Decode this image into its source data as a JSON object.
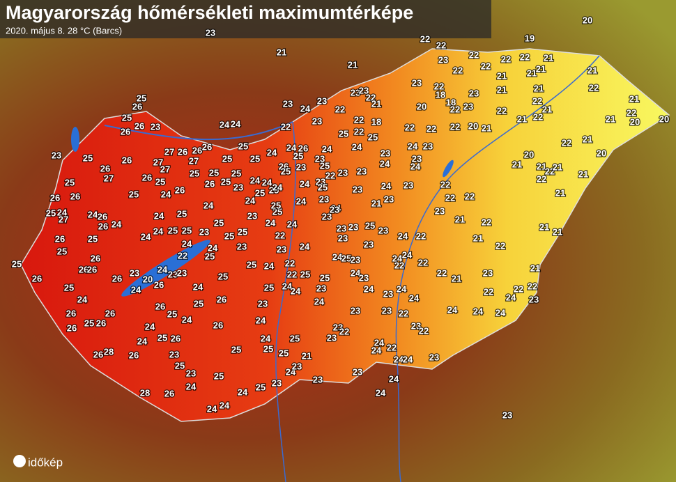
{
  "header": {
    "title": "Magyarország hőmérsékleti maximumtérképe",
    "subtitle": "2020. május 8.   28 °C (Barcs)"
  },
  "logo": "időkép",
  "labels": [
    20,
    23,
    22,
    19,
    22,
    21,
    21,
    23,
    22,
    22,
    22,
    21,
    22,
    22,
    21,
    21,
    21,
    23,
    22,
    21,
    22,
    23,
    23,
    21,
    18,
    23,
    21,
    22,
    25,
    26,
    21,
    23,
    24,
    23,
    22,
    21,
    20,
    18,
    22,
    23,
    22,
    22,
    21,
    22,
    25,
    26,
    23,
    26,
    24,
    24,
    22,
    23,
    22,
    18,
    22,
    22,
    22,
    20,
    21,
    21,
    22,
    21,
    20,
    20,
    23,
    25,
    26,
    27,
    27,
    26,
    26,
    26,
    27,
    25,
    25,
    25,
    22,
    25,
    23,
    24,
    23,
    22,
    21,
    20,
    20,
    21,
    21,
    22,
    21,
    22,
    21,
    21,
    26,
    27,
    26,
    25,
    25,
    27,
    26,
    26,
    24,
    25,
    26,
    26,
    25,
    25,
    25,
    25,
    23,
    24,
    25,
    24,
    27,
    24,
    26,
    26,
    24,
    25,
    24,
    24,
    24,
    25,
    25,
    23,
    26,
    25,
    25,
    24,
    25,
    25,
    25,
    23,
    24,
    25,
    24,
    23,
    24,
    25,
    26,
    26,
    26,
    22,
    25,
    23,
    24,
    20,
    26,
    26,
    24,
    23,
    23,
    26,
    24,
    25,
    25,
    24,
    26,
    26,
    26,
    25,
    26,
    24,
    26,
    25,
    26,
    25,
    24,
    26,
    24,
    25,
    26,
    23,
    26,
    28,
    26,
    25,
    23,
    25,
    25,
    28,
    26,
    24,
    24,
    24,
    24,
    25,
    23,
    24,
    23,
    23,
    21,
    23,
    24,
    24,
    23,
    24,
    22,
    22,
    25,
    25,
    25,
    24,
    24,
    23,
    24,
    23,
    24,
    24,
    25,
    25,
    25,
    23,
    22,
    23,
    24,
    23,
    24,
    23,
    23,
    22,
    24,
    24,
    22,
    24,
    24,
    23,
    22,
    23,
    24,
    25,
    23,
    23,
    24,
    24,
    24,
    24,
    24,
    22,
    22,
    24,
    24,
    21,
    23,
    22,
    22,
    21,
    24,
    22,
    22,
    23,
    22,
    24,
    21,
    22,
    21,
    22,
    21,
    21,
    23,
    22,
    22,
    22,
    24,
    23,
    23,
    23,
    21,
    23,
    23,
    25,
    23,
    23,
    23,
    22,
    24,
    23,
    25,
    24,
    26,
    24,
    26,
    23,
    23,
    25,
    22,
    23,
    23,
    24,
    23,
    24,
    25,
    24,
    23,
    25,
    25,
    24,
    24,
    24,
    25,
    24,
    24,
    25,
    24,
    25,
    25,
    24,
    23,
    24,
    23,
    23
  ]
}
